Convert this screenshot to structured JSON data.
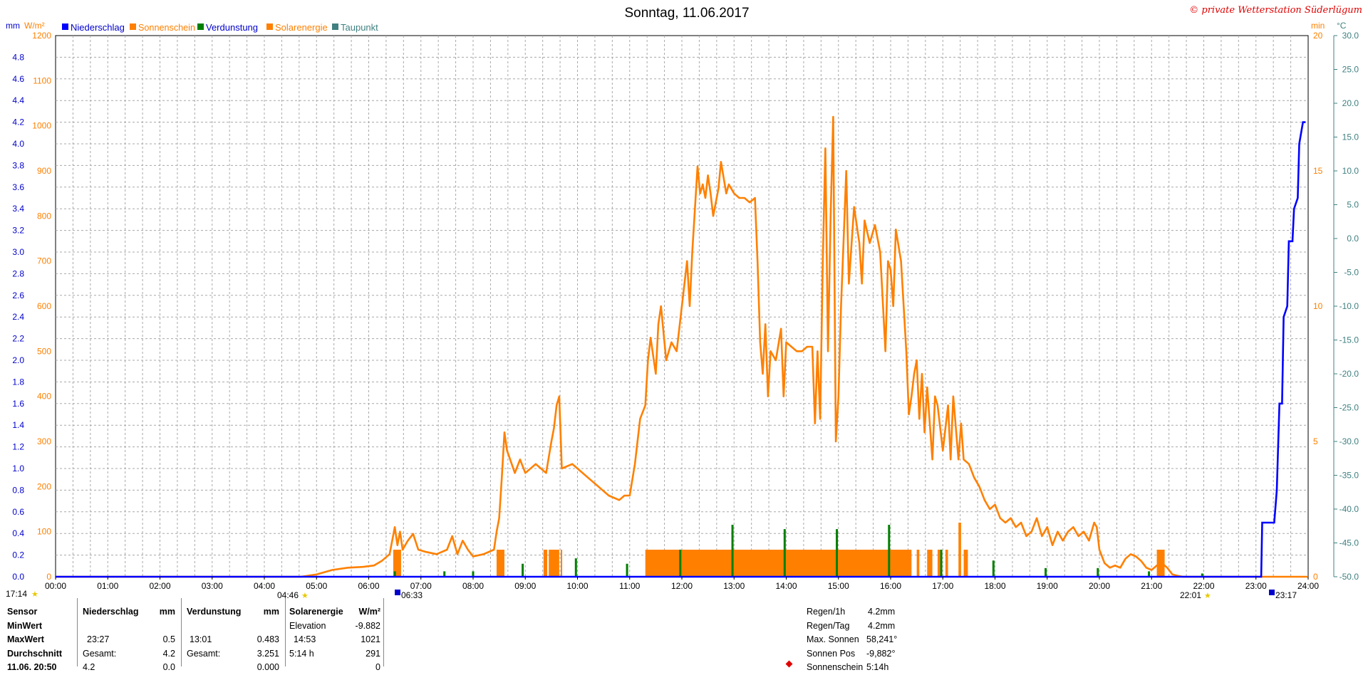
{
  "title": "Sonntag, 11.06.2017",
  "copyright": "© private Wetterstation Süderlügum",
  "legend": [
    {
      "label": "Niederschlag",
      "color": "#0000ff"
    },
    {
      "label": "Sonnenschein",
      "color": "#ff8000"
    },
    {
      "label": "Verdunstung",
      "color": "#008000"
    },
    {
      "label": "Solarenergie",
      "color": "#ff8000"
    },
    {
      "label": "Taupunkt",
      "color": "#408080"
    }
  ],
  "units": {
    "left_mm": "mm",
    "left_wm2": "W/m²",
    "right_min": "min",
    "right_c": "°C"
  },
  "axis_marks": {
    "sunrise_time": "04:46",
    "sunset_time": "22:01",
    "moonset_time": "06:33",
    "moonrise_time": "23:17",
    "daylight_time": "17:14"
  },
  "chart_data": {
    "type": "line",
    "title": "Sonntag, 11.06.2017",
    "x_ticks": [
      "00:00",
      "01:00",
      "02:00",
      "03:00",
      "04:00",
      "05:00",
      "06:00",
      "07:00",
      "08:00",
      "09:00",
      "10:00",
      "11:00",
      "12:00",
      "13:00",
      "14:00",
      "15:00",
      "16:00",
      "17:00",
      "18:00",
      "19:00",
      "20:00",
      "21:00",
      "22:00",
      "23:00",
      "24:00"
    ],
    "y_ticks_mm": [
      "0.0",
      "0.2",
      "0.4",
      "0.6",
      "0.8",
      "1.0",
      "1.2",
      "1.4",
      "1.6",
      "1.8",
      "2.0",
      "2.2",
      "2.4",
      "2.6",
      "2.8",
      "3.0",
      "3.2",
      "3.4",
      "3.6",
      "3.8",
      "4.0",
      "4.2",
      "4.4",
      "4.6",
      "4.8"
    ],
    "y_ticks_wm2": [
      "0",
      "100",
      "200",
      "300",
      "400",
      "500",
      "600",
      "700",
      "800",
      "900",
      "1000",
      "1100",
      "1200"
    ],
    "y_ticks_min": [
      "0",
      "5",
      "10",
      "15",
      "20"
    ],
    "y_ticks_temp": [
      "-50.0",
      "-45.0",
      "-40.0",
      "-35.0",
      "-30.0",
      "-25.0",
      "-20.0",
      "-15.0",
      "-10.0",
      "-5.0",
      "0.0",
      "5.0",
      "10.0",
      "15.0",
      "20.0",
      "25.0",
      "30.0"
    ],
    "ylim_mm": [
      0,
      5.0
    ],
    "ylim_wm2": [
      0,
      1200
    ],
    "ylim_min": [
      0,
      20
    ],
    "ylim_temp": [
      -50,
      30
    ],
    "grid": true,
    "series": [
      {
        "name": "Solarenergie",
        "unit": "W/m²",
        "color": "#ff8000",
        "points": [
          [
            4.7,
            0
          ],
          [
            5.0,
            5
          ],
          [
            5.3,
            15
          ],
          [
            5.6,
            20
          ],
          [
            5.9,
            22
          ],
          [
            6.1,
            25
          ],
          [
            6.25,
            35
          ],
          [
            6.4,
            50
          ],
          [
            6.5,
            110
          ],
          [
            6.55,
            70
          ],
          [
            6.6,
            100
          ],
          [
            6.65,
            60
          ],
          [
            6.75,
            80
          ],
          [
            6.85,
            95
          ],
          [
            6.95,
            60
          ],
          [
            7.1,
            55
          ],
          [
            7.3,
            50
          ],
          [
            7.5,
            60
          ],
          [
            7.6,
            90
          ],
          [
            7.7,
            50
          ],
          [
            7.8,
            80
          ],
          [
            7.9,
            60
          ],
          [
            8.0,
            45
          ],
          [
            8.2,
            50
          ],
          [
            8.4,
            60
          ],
          [
            8.45,
            100
          ],
          [
            8.5,
            130
          ],
          [
            8.55,
            220
          ],
          [
            8.6,
            320
          ],
          [
            8.65,
            280
          ],
          [
            8.8,
            230
          ],
          [
            8.9,
            260
          ],
          [
            9.0,
            230
          ],
          [
            9.2,
            250
          ],
          [
            9.4,
            230
          ],
          [
            9.5,
            300
          ],
          [
            9.55,
            330
          ],
          [
            9.6,
            380
          ],
          [
            9.65,
            400
          ],
          [
            9.7,
            240
          ],
          [
            9.9,
            250
          ],
          [
            10.0,
            240
          ],
          [
            10.2,
            220
          ],
          [
            10.4,
            200
          ],
          [
            10.6,
            180
          ],
          [
            10.8,
            170
          ],
          [
            10.9,
            180
          ],
          [
            11.0,
            180
          ],
          [
            11.1,
            250
          ],
          [
            11.2,
            350
          ],
          [
            11.3,
            380
          ],
          [
            11.35,
            480
          ],
          [
            11.4,
            530
          ],
          [
            11.5,
            450
          ],
          [
            11.55,
            560
          ],
          [
            11.6,
            600
          ],
          [
            11.7,
            480
          ],
          [
            11.8,
            520
          ],
          [
            11.9,
            500
          ],
          [
            12.0,
            600
          ],
          [
            12.1,
            700
          ],
          [
            12.15,
            600
          ],
          [
            12.2,
            720
          ],
          [
            12.3,
            910
          ],
          [
            12.35,
            850
          ],
          [
            12.4,
            870
          ],
          [
            12.45,
            840
          ],
          [
            12.5,
            890
          ],
          [
            12.55,
            850
          ],
          [
            12.6,
            800
          ],
          [
            12.7,
            860
          ],
          [
            12.75,
            920
          ],
          [
            12.85,
            850
          ],
          [
            12.9,
            870
          ],
          [
            13.0,
            850
          ],
          [
            13.1,
            840
          ],
          [
            13.2,
            840
          ],
          [
            13.3,
            830
          ],
          [
            13.4,
            840
          ],
          [
            13.45,
            700
          ],
          [
            13.5,
            520
          ],
          [
            13.55,
            450
          ],
          [
            13.6,
            560
          ],
          [
            13.65,
            400
          ],
          [
            13.7,
            500
          ],
          [
            13.8,
            480
          ],
          [
            13.9,
            550
          ],
          [
            13.95,
            400
          ],
          [
            14.0,
            520
          ],
          [
            14.1,
            510
          ],
          [
            14.2,
            500
          ],
          [
            14.3,
            500
          ],
          [
            14.4,
            510
          ],
          [
            14.5,
            510
          ],
          [
            14.55,
            340
          ],
          [
            14.6,
            500
          ],
          [
            14.65,
            350
          ],
          [
            14.7,
            700
          ],
          [
            14.75,
            950
          ],
          [
            14.8,
            500
          ],
          [
            14.85,
            800
          ],
          [
            14.9,
            1020
          ],
          [
            14.95,
            300
          ],
          [
            15.0,
            400
          ],
          [
            15.05,
            600
          ],
          [
            15.1,
            750
          ],
          [
            15.15,
            900
          ],
          [
            15.2,
            650
          ],
          [
            15.3,
            820
          ],
          [
            15.4,
            740
          ],
          [
            15.45,
            650
          ],
          [
            15.5,
            790
          ],
          [
            15.6,
            740
          ],
          [
            15.7,
            780
          ],
          [
            15.8,
            720
          ],
          [
            15.9,
            500
          ],
          [
            15.95,
            700
          ],
          [
            16.0,
            680
          ],
          [
            16.05,
            600
          ],
          [
            16.1,
            770
          ],
          [
            16.2,
            700
          ],
          [
            16.3,
            500
          ],
          [
            16.35,
            360
          ],
          [
            16.4,
            400
          ],
          [
            16.45,
            450
          ],
          [
            16.5,
            480
          ],
          [
            16.55,
            350
          ],
          [
            16.6,
            450
          ],
          [
            16.65,
            320
          ],
          [
            16.7,
            420
          ],
          [
            16.8,
            260
          ],
          [
            16.85,
            400
          ],
          [
            16.9,
            380
          ],
          [
            17.0,
            280
          ],
          [
            17.1,
            380
          ],
          [
            17.15,
            260
          ],
          [
            17.2,
            400
          ],
          [
            17.3,
            260
          ],
          [
            17.35,
            340
          ],
          [
            17.4,
            260
          ],
          [
            17.5,
            250
          ],
          [
            17.6,
            220
          ],
          [
            17.7,
            200
          ],
          [
            17.8,
            170
          ],
          [
            17.9,
            150
          ],
          [
            18.0,
            160
          ],
          [
            18.1,
            130
          ],
          [
            18.2,
            120
          ],
          [
            18.3,
            130
          ],
          [
            18.4,
            110
          ],
          [
            18.5,
            120
          ],
          [
            18.6,
            90
          ],
          [
            18.7,
            100
          ],
          [
            18.8,
            130
          ],
          [
            18.9,
            90
          ],
          [
            19.0,
            110
          ],
          [
            19.1,
            70
          ],
          [
            19.2,
            100
          ],
          [
            19.3,
            80
          ],
          [
            19.4,
            100
          ],
          [
            19.5,
            110
          ],
          [
            19.6,
            90
          ],
          [
            19.7,
            100
          ],
          [
            19.8,
            80
          ],
          [
            19.9,
            120
          ],
          [
            19.95,
            110
          ],
          [
            20.0,
            60
          ],
          [
            20.1,
            30
          ],
          [
            20.2,
            20
          ],
          [
            20.3,
            25
          ],
          [
            20.4,
            20
          ],
          [
            20.5,
            40
          ],
          [
            20.6,
            50
          ],
          [
            20.7,
            45
          ],
          [
            20.8,
            35
          ],
          [
            20.9,
            20
          ],
          [
            21.0,
            15
          ],
          [
            21.1,
            25
          ],
          [
            21.2,
            30
          ],
          [
            21.3,
            20
          ],
          [
            21.4,
            5
          ],
          [
            21.5,
            2
          ],
          [
            21.6,
            0
          ]
        ]
      },
      {
        "name": "Sonnenschein",
        "unit": "min",
        "color": "#ff8000",
        "segments": [
          [
            6.47,
            6.62,
            1.0
          ],
          [
            8.45,
            8.6,
            1.0
          ],
          [
            9.35,
            9.42,
            1.0
          ],
          [
            9.45,
            9.65,
            1.0
          ],
          [
            9.68,
            9.7,
            1.0
          ],
          [
            11.3,
            12.0,
            1.0
          ],
          [
            12.0,
            16.4,
            1.0
          ],
          [
            16.5,
            16.55,
            1.0
          ],
          [
            16.7,
            16.8,
            1.0
          ],
          [
            16.9,
            16.95,
            1.0
          ],
          [
            17.05,
            17.1,
            1.0
          ],
          [
            17.3,
            17.35,
            2.0
          ],
          [
            17.4,
            17.48,
            1.0
          ],
          [
            21.1,
            21.25,
            1.0
          ]
        ]
      },
      {
        "name": "Verdunstung",
        "unit": "mm",
        "color": "#008000",
        "bars": [
          [
            6.5,
            0.05
          ],
          [
            7.45,
            0.05
          ],
          [
            8.0,
            0.05
          ],
          [
            8.95,
            0.12
          ],
          [
            9.97,
            0.17
          ],
          [
            10.95,
            0.12
          ],
          [
            11.97,
            0.25
          ],
          [
            12.97,
            0.48
          ],
          [
            13.97,
            0.44
          ],
          [
            14.97,
            0.44
          ],
          [
            15.97,
            0.48
          ],
          [
            16.97,
            0.25
          ],
          [
            17.97,
            0.15
          ],
          [
            18.97,
            0.08
          ],
          [
            19.97,
            0.08
          ],
          [
            20.95,
            0.05
          ],
          [
            21.97,
            0.03
          ]
        ]
      },
      {
        "name": "Niederschlag",
        "unit": "mm",
        "color": "#0000ff",
        "points": [
          [
            0,
            0
          ],
          [
            23.1,
            0
          ],
          [
            23.12,
            0.5
          ],
          [
            23.35,
            0.5
          ],
          [
            23.4,
            0.8
          ],
          [
            23.45,
            1.6
          ],
          [
            23.5,
            1.6
          ],
          [
            23.53,
            2.4
          ],
          [
            23.6,
            2.5
          ],
          [
            23.63,
            3.1
          ],
          [
            23.7,
            3.1
          ],
          [
            23.73,
            3.4
          ],
          [
            23.8,
            3.5
          ],
          [
            23.83,
            4.0
          ],
          [
            23.9,
            4.2
          ],
          [
            23.95,
            4.2
          ]
        ]
      }
    ]
  },
  "stats_table": {
    "headers": {
      "sensor": "Sensor",
      "niederschlag": "Niederschlag",
      "niederschlag_unit": "mm",
      "verdunstung": "Verdunstung",
      "verdunstung_unit": "mm",
      "solar": "Solarenergie",
      "solar_unit": "W/m²"
    },
    "row_labels": {
      "min": "MinWert",
      "max": "MaxWert",
      "avg": "Durchschnitt",
      "extra": "11.06. 20:50"
    },
    "niederschlag": {
      "max_time": "23:27",
      "max_value": "0.5",
      "total_label": "Gesamt:",
      "total_value": "4.2",
      "extra_a": "4.2",
      "extra_b": "0.0"
    },
    "verdunstung": {
      "max_time": "13:01",
      "max_value": "0.483",
      "total_label": "Gesamt:",
      "total_value": "3.251",
      "extra_b": "0.000"
    },
    "solar": {
      "min_label": "Elevation",
      "min_value": "-9.882",
      "max_time": "14:53",
      "max_value": "1021",
      "dur_label": "5:14 h",
      "dur_value": "291",
      "extra_value": "0"
    }
  },
  "right_stats": [
    {
      "label": "Regen/1h",
      "value": "4.2mm"
    },
    {
      "label": "Regen/Tag",
      "value": "4.2mm"
    },
    {
      "label": "Max. Sonnen",
      "value": "58,241°"
    },
    {
      "label": "Sonnen Pos",
      "value": "-9,882°"
    },
    {
      "label": "Sonnenschein",
      "value": "5:14h"
    }
  ]
}
